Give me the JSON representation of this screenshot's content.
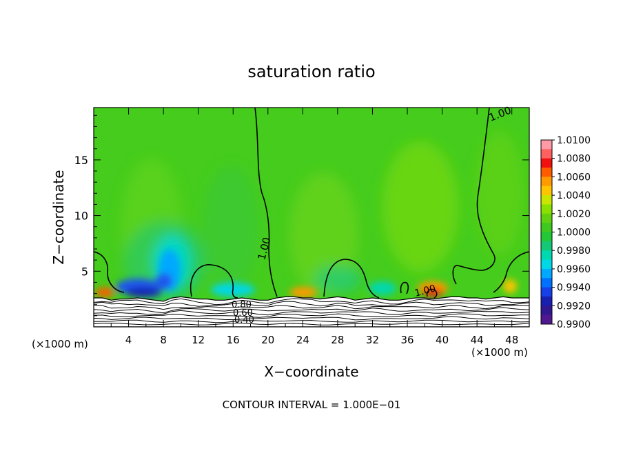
{
  "chart_data": {
    "type": "heatmap",
    "title": "saturation ratio",
    "xlabel": "X−coordinate",
    "ylabel": "Z−coordinate",
    "x_unit": "(×1000 m)",
    "x_unit_right": "(×1000 m)",
    "xlim": [
      0,
      50
    ],
    "ylim": [
      0,
      19.7
    ],
    "x_ticks": [
      4,
      8,
      12,
      16,
      20,
      24,
      28,
      32,
      36,
      40,
      44,
      48
    ],
    "y_ticks": [
      5,
      10,
      15
    ],
    "footer": "CONTOUR INTERVAL = 1.000E−01",
    "colorbar": {
      "labels": [
        "1.0100",
        "1.0080",
        "1.0060",
        "1.0040",
        "1.0020",
        "1.0000",
        "0.9980",
        "0.9960",
        "0.9940",
        "0.9920",
        "0.9900"
      ],
      "colors": [
        "#ff9aa6",
        "#ff6060",
        "#f01010",
        "#ff5c00",
        "#ff9a00",
        "#ffc400",
        "#c8e600",
        "#8ae000",
        "#60d010",
        "#3fc81e",
        "#22c838",
        "#14c878",
        "#00d8b0",
        "#00d8e6",
        "#00a8ff",
        "#0070ff",
        "#1840e8",
        "#1820b0",
        "#301890",
        "#501890"
      ]
    },
    "contour_labels": [
      "1.00",
      "1.00",
      "1.00",
      "0.80",
      "0.60",
      "0.40",
      "1.00"
    ],
    "surface_y": [
      2.6,
      2.6,
      2.4,
      2.5,
      2.5,
      2.6,
      2.5,
      2.4,
      2.3,
      2.6,
      2.7,
      2.6,
      2.5,
      2.5,
      2.4,
      2.4,
      2.5,
      2.6,
      2.5,
      2.4,
      2.4,
      2.6,
      2.7,
      2.7,
      2.6,
      2.6,
      2.5,
      2.6,
      2.7,
      2.6,
      2.4,
      2.5,
      2.6,
      2.5,
      2.4,
      2.4,
      2.5,
      2.6,
      2.6,
      2.5,
      2.6,
      2.7,
      2.7,
      2.6,
      2.6,
      2.5,
      2.6,
      2.7,
      2.6,
      2.6,
      2.6
    ]
  }
}
